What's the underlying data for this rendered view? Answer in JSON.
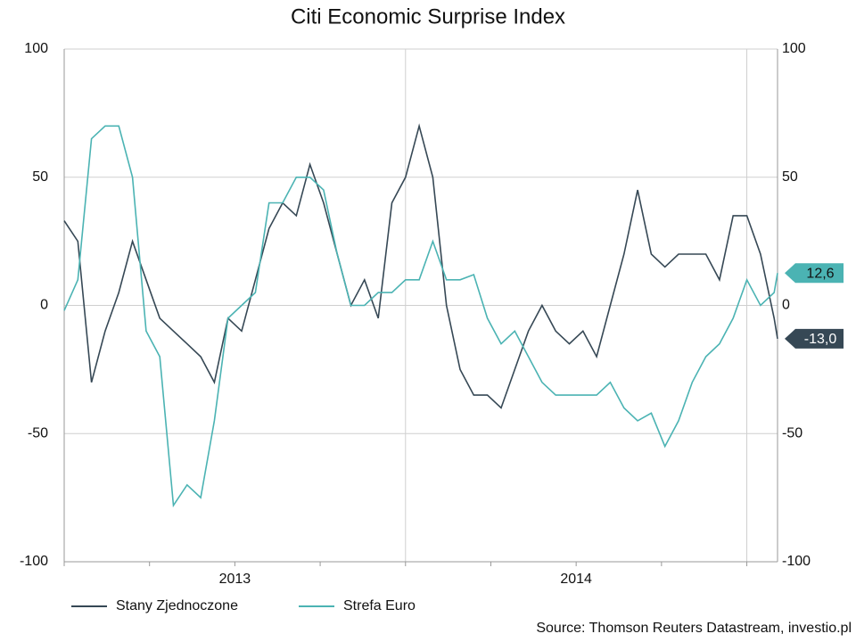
{
  "chart_data": {
    "type": "line",
    "title": "Citi Economic Surprise Index",
    "source": "Source: Thomson Reuters Datastream, investio.pl",
    "x": [
      2013,
      2013.04,
      2013.08,
      2013.12,
      2013.16,
      2013.2,
      2013.24,
      2013.28,
      2013.32,
      2013.36,
      2013.4,
      2013.44,
      2013.48,
      2013.52,
      2013.56,
      2013.6,
      2013.64,
      2013.68,
      2013.72,
      2013.76,
      2013.8,
      2013.84,
      2013.88,
      2013.92,
      2013.96,
      2014,
      2014.04,
      2014.08,
      2014.12,
      2014.16,
      2014.2,
      2014.24,
      2014.28,
      2014.32,
      2014.36,
      2014.4,
      2014.44,
      2014.48,
      2014.52,
      2014.56,
      2014.6,
      2014.64,
      2014.68,
      2014.72,
      2014.76,
      2014.8,
      2014.84,
      2014.88,
      2014.92,
      2014.96,
      2015,
      2015.04,
      2015.08,
      2015.09
    ],
    "series": [
      {
        "name": "Stany Zjednoczone",
        "color": "#364855",
        "end_label": "-13,0",
        "values": [
          33,
          25,
          -30,
          -10,
          5,
          25,
          10,
          -5,
          -10,
          -15,
          -20,
          -30,
          -5,
          -10,
          10,
          30,
          40,
          35,
          55,
          40,
          20,
          0,
          10,
          -5,
          40,
          50,
          70,
          50,
          0,
          -25,
          -35,
          -35,
          -40,
          -25,
          -10,
          0,
          -10,
          -15,
          -10,
          -20,
          0,
          20,
          45,
          20,
          15,
          20,
          20,
          20,
          10,
          35,
          35,
          20,
          -5,
          -13.0
        ]
      },
      {
        "name": "Strefa Euro",
        "color": "#4bb3b3",
        "end_label": "12,6",
        "values": [
          -2,
          10,
          65,
          70,
          70,
          50,
          -10,
          -20,
          -78,
          -70,
          -75,
          -45,
          -5,
          0,
          5,
          40,
          40,
          50,
          50,
          45,
          20,
          0,
          0,
          5,
          5,
          10,
          10,
          25,
          10,
          10,
          12,
          -5,
          -15,
          -10,
          -20,
          -30,
          -35,
          -35,
          -35,
          -35,
          -30,
          -40,
          -45,
          -42,
          -55,
          -45,
          -30,
          -20,
          -15,
          -5,
          10,
          0,
          5,
          12.6
        ]
      }
    ],
    "xlim": [
      2013,
      2015.09
    ],
    "xticks": [
      2013,
      2013.25,
      2013.5,
      2013.75,
      2014,
      2014.25,
      2014.5,
      2014.75,
      2015
    ],
    "xlabels": [
      {
        "value": 2013.5,
        "label": "2013"
      },
      {
        "value": 2014.5,
        "label": "2014"
      }
    ],
    "xgrid": [
      2014,
      2015
    ],
    "ylim": [
      -100,
      100
    ],
    "yticks": [
      100,
      50,
      0,
      -50,
      -100
    ],
    "y2lim": [
      -100,
      100
    ],
    "y2ticks": [
      100,
      50,
      0,
      -50,
      -100
    ],
    "grid": true
  }
}
